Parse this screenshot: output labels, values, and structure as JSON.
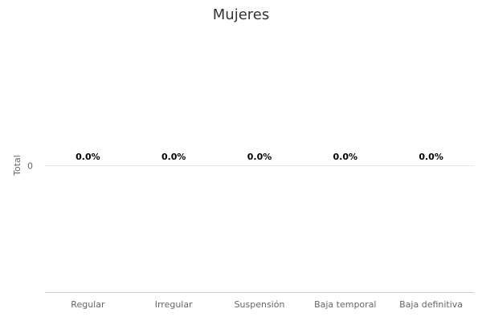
{
  "chart_data": {
    "type": "bar",
    "title": "Mujeres",
    "xlabel": "",
    "ylabel": "Total",
    "categories": [
      "Regular",
      "Irregular",
      "Suspensión",
      "Baja temporal",
      "Baja definitiva"
    ],
    "values": [
      0,
      0,
      0,
      0,
      0
    ],
    "data_labels": [
      "0.0%",
      "0.0%",
      "0.0%",
      "0.0%",
      "0.0%"
    ],
    "y_ticks": [
      0
    ],
    "y_tick_labels": [
      "0"
    ],
    "ylim": [
      -1,
      1
    ],
    "grid": true,
    "legend": "none"
  },
  "colors": {
    "background": "#ffffff",
    "title": "#333333",
    "axis_text": "#666666",
    "grid": "#e6e6e6",
    "axis_line": "#cccccc",
    "data_label": "#000000",
    "bar": "#7cb5ec"
  }
}
